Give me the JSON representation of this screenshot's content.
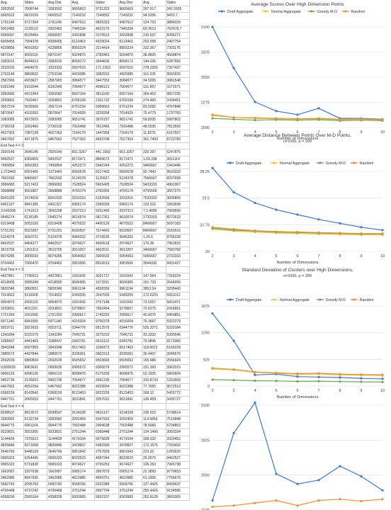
{
  "spreadsheet": {
    "header": [
      "Avg.",
      "Stdev",
      "Avg Dist",
      "Avg.",
      "Stdev",
      "Avg Dist",
      "Avg.",
      "Stdev"
    ],
    "section_labels": [
      "End Test # = 2",
      "End Test # = 3",
      "End Test # = 4"
    ],
    "block1": [
      [
        "3283592",
        "7008744",
        "3283592",
        "9665663",
        "9731223",
        "9665663",
        "267.917",
        "341.5935"
      ],
      [
        "6665522",
        "6819159",
        "6665522",
        "7149232",
        "7240832",
        "7149232",
        "94.5256",
        "9433.7"
      ],
      [
        "1791145",
        "9717394",
        "1791145",
        "9497912",
        "9655323",
        "9497912",
        "124.753",
        "3884329"
      ],
      [
        "9302483",
        "1125123",
        "9302483",
        "7445334",
        "4923170",
        "7445334",
        "69.3513",
        "762678.7"
      ],
      [
        "6566667",
        "6528454",
        "6566667",
        "3432838",
        "2376513",
        "3432838",
        "216.637",
        "6096271"
      ],
      [
        "8308455",
        "7994378",
        "8308455",
        "6113463",
        "4529024",
        "6113463",
        "202.058",
        "2407754"
      ],
      [
        "4228856",
        "4691563",
        "4228856",
        "8955224",
        "2214414",
        "8955224",
        "222.367",
        "7301176"
      ],
      [
        "5870147",
        "9559116",
        "5870147",
        "5024876",
        "2782463",
        "5024876",
        "38.4825",
        "4564874"
      ],
      [
        "3383015",
        "8044613",
        "3383015",
        "8058172",
        "3944605",
        "8058172",
        "144.036",
        "5287683"
      ],
      [
        "3333333",
        "4464675",
        "3333333",
        "0597015",
        "171.2333",
        "0597015",
        "278.2255",
        "7357437"
      ],
      [
        "2763149",
        "9869632",
        "2763149",
        "4429385",
        "3382916",
        "4429385",
        "116.326",
        "9655929"
      ],
      [
        "2587065",
        "4933627",
        "2587065",
        "3084577",
        "3447553",
        "3084577",
        "34.5265",
        "3081548"
      ],
      [
        "6191549",
        "5162044",
        "6191549",
        "7064677",
        "4998121",
        "7064677",
        "131.857",
        "1571571"
      ],
      [
        "3283582",
        "4101964",
        "3283582",
        "6567164",
        "3611168",
        "6567164",
        "369.463",
        "9827235"
      ],
      [
        "2039801",
        "7932467",
        "2039801",
        "6766169",
        "2161732",
        "6766169",
        "274.465",
        "1099451"
      ],
      [
        "3557214",
        "5035569",
        "3557214",
        "6751234",
        "5089663",
        "6751234",
        "83.5282",
        "4767848"
      ],
      [
        "5870647",
        "4103393",
        "5870647",
        "7014925",
        "3229268",
        "7014925",
        "75.4775",
        "1737783"
      ],
      [
        "3383085",
        "9973933",
        "3383085",
        "9651741",
        "3976157",
        "9651741",
        "59.8335",
        "5997803"
      ],
      [
        "2736318",
        "1092469",
        "2736318",
        "7916468",
        "7813466",
        "7916468",
        "48.5535",
        "7813593"
      ],
      [
        "4527363",
        "7387128",
        "4527363",
        "7164179",
        "1447958",
        "7164179",
        "11.8275",
        "6167557"
      ],
      [
        "9467662",
        "4371875",
        "9467662",
        "7527363",
        "4933708",
        "7527363",
        "361.7409",
        "8722783"
      ]
    ],
    "block2": [
      [
        "2920149",
        "2645145",
        "2920149",
        "661.3267",
        "441.1692",
        "661.3267",
        "220.397",
        "5247875"
      ],
      [
        "9492537",
        "6369905",
        "9492537",
        "8172471",
        "8466672",
        "8172471",
        "1.59.338",
        "3911114"
      ],
      [
        "7495854",
        "3056353",
        "7495854",
        "4252273",
        "5942244",
        "4252273",
        "9466667",
        "1943446"
      ],
      [
        "1.373443",
        "5001465",
        "1373443",
        "6565578",
        "5217403",
        "6565578",
        "92.7443",
        "9633333"
      ],
      [
        "7661592",
        "9466667",
        "7661592",
        "5124378",
        "1125637",
        "5124378",
        "7566667",
        "8237658"
      ],
      [
        "3996683",
        "5217422",
        "3996683",
        "7628524",
        "5665405",
        "7628524",
        "9433333",
        "4963367"
      ],
      [
        "3968888",
        "9501867",
        "3968888",
        "4765174",
        "2765356",
        "4765174",
        "4755556",
        "3557275"
      ],
      [
        "8341025",
        "1574618",
        "8341025",
        "3233316",
        "5162566",
        "3233316",
        "7533333",
        "3005893"
      ],
      [
        "6401327",
        "9841385",
        "6401327",
        "6965174",
        "2399336",
        "6965174",
        "102.616",
        "1803698"
      ],
      [
        "3.542208",
        "1741513",
        "3542208",
        "2537313",
        "5251465",
        "2537313",
        "7.2.4000",
        "7069660"
      ],
      [
        "0945274",
        "6135185",
        "0945274",
        "9616574",
        "5817261",
        "9616574",
        "1733333",
        "8273633"
      ],
      [
        "6319408",
        "5053193",
        "6319408",
        "4075522",
        "4400126",
        "4075522",
        "8466667",
        "5697183"
      ],
      [
        "5731291",
        "5523287",
        "5731291",
        "6630597",
        "7574403",
        "6630597",
        "8466667",
        "3183516"
      ],
      [
        "5124378",
        "3660721",
        "5124378",
        "9946332",
        "3716535",
        "9946332",
        "1.25.6",
        "9756338"
      ],
      [
        "8492537",
        "9464377",
        "8492537",
        "2074627",
        "4930618",
        "2074627",
        "176.36",
        "7962815"
      ],
      [
        "3515755",
        "1201313",
        "3515755",
        "3013267",
        "4502011",
        "3013267",
        "3466667",
        "7583782"
      ],
      [
        "8074285",
        "3006033",
        "8074285",
        "5054063",
        "3305532",
        "5054063",
        "5066667",
        "2733333"
      ],
      [
        "9704462",
        "7066470",
        "9704462",
        "3953566",
        "8916513",
        "3953566",
        "3544330",
        "9431427"
      ]
    ],
    "block3": [
      [
        "4427861",
        "7796613",
        "4427861",
        "1691542",
        "3021717",
        "1691542",
        "147.564",
        "7318224"
      ],
      [
        "4218905",
        "3996349",
        "4218905",
        "9606965",
        "1573311",
        "9606965",
        "151.733",
        "2644269"
      ],
      [
        "5820346",
        "3860551",
        "5820346",
        "9961194",
        "4558356",
        "9961194",
        "3853.54",
        "3295443"
      ],
      [
        "7014922",
        "9115928",
        "7014922",
        "5349255",
        "3247503",
        "5349255",
        "172.5225",
        "5911012"
      ],
      [
        "9054973",
        "2605115",
        "9054973",
        "1691542",
        "3757148",
        "1691542",
        "73.5357",
        "5661471"
      ],
      [
        "3233831",
        "4011101",
        "3233831",
        "5278607",
        "7962454",
        "5278607",
        "72.6275",
        "2418951"
      ],
      [
        "1721393",
        "1091565",
        "1721393",
        "2995617",
        "1745293",
        "2995617",
        "40.4375",
        "9469851"
      ],
      [
        "5971140",
        "9941655",
        "5971140",
        "4159204",
        "9756378",
        "4159204",
        "76.3667",
        "5322279"
      ],
      [
        "9253711",
        "3922633",
        "9253711",
        "0344776",
        "9512575",
        "0344776",
        "525.3271",
        "5229184"
      ],
      [
        "1343284",
        "5220179",
        "1343284",
        "7646731",
        "3276310",
        "7646731",
        "33.3332",
        "5305546"
      ],
      [
        "1098437",
        "4441463",
        "1098437",
        "0343781",
        "6616116",
        "0343781",
        "79.9845",
        "9173383"
      ],
      [
        "3943348",
        "6697959",
        "3943348",
        "6517463",
        "1184373",
        "6517463",
        "118.6622",
        "5166229"
      ],
      [
        "2985572",
        "4427844",
        "2985572",
        "2035061",
        "0902313",
        "2035061",
        "30.4437",
        "3945575"
      ],
      [
        "2592039",
        "9880834",
        "2592039",
        "6505652",
        "9503669",
        "6505652",
        "155.686",
        "2556924"
      ],
      [
        "0.893035",
        "9963631",
        "0993035",
        "2995572",
        "9300076",
        "2995572",
        "151.393",
        "3962015"
      ],
      [
        "9966133",
        "4396126",
        "9966133",
        "9008475",
        "5175335",
        "9008475",
        "52.1925",
        "5800604"
      ],
      [
        "9452736",
        "3135023",
        "9452736",
        "7064677",
        "2691235",
        "7064677",
        "310.8733",
        "1331659"
      ],
      [
        "6467662",
        "4552254",
        "6467662",
        "9022388",
        "4029554",
        "9022388",
        "77.7655",
        "9572513"
      ],
      [
        "6368159",
        "8143543",
        "6368159",
        "8123453",
        "9022239",
        "8123453",
        "168.12",
        "5426772"
      ],
      [
        "0447761",
        "2065933",
        "0447761",
        "3631841",
        "3357631",
        "3631841",
        "136.459",
        "3436727"
      ]
    ],
    "block4": [
      [
        "8298507",
        "9813572",
        "8298507",
        "9134328",
        "9631137",
        "9134328",
        "236.915",
        "5738614"
      ],
      [
        "3283582",
        "6132734",
        "3283582",
        "3202459",
        "5047933",
        "3202459",
        "114.5856",
        "7516848"
      ],
      [
        "9044776",
        "4361164",
        "9044776",
        "7502488",
        "2994638",
        "7502488",
        "78.5066",
        "6794853"
      ],
      [
        "9233831",
        "3553305",
        "9233831",
        "2751244",
        "6366448",
        "2751244",
        "124.1496",
        "3993334"
      ],
      [
        "1144428",
        "7379312",
        "1144428",
        "4179104",
        "6675828",
        "4179104",
        "168.332",
        "3329452"
      ],
      [
        "9835846",
        "5071658",
        "9835846",
        "3478607",
        "5482990",
        "3478607",
        "172.1675",
        "7250433"
      ],
      [
        "2646766",
        "9448129",
        "2646766",
        "9951642",
        "2757839",
        "9951642",
        "223.32",
        "1265525"
      ],
      [
        "0995323",
        "6254445",
        "0995323",
        "8033523",
        "4587244",
        "8033523",
        "26.2676",
        "9462527"
      ],
      [
        "9995323",
        "5731828",
        "9995323",
        "9074627",
        "9765253",
        "9074627",
        "106.253",
        "7945738"
      ],
      [
        "1662687",
        "3207638",
        "1662687",
        "0905174",
        "3957879",
        "0905174",
        "22.3693",
        "9779653"
      ],
      [
        "3462985",
        "8647935",
        "3462985",
        "4623985",
        "4659751",
        "4623985",
        "61.3306",
        "7756679"
      ],
      [
        "5582742",
        "2095763",
        "5582742",
        "5568766",
        "5322389",
        "5568766",
        "127.4425",
        "8439637"
      ],
      [
        "4706468",
        "4737242",
        "4706468",
        "3751244",
        "2697794",
        "3751244",
        "255.4426",
        "9134585"
      ],
      [
        "4358209",
        "2565164",
        "4358209",
        "9303583",
        "5652157",
        "9303583",
        "252.8128",
        "3893305"
      ]
    ]
  },
  "charts": [
    {
      "title": "Average Scores Over High Dimension Points",
      "subtitle": "",
      "legend": [
        "Draft Aggregate",
        "Normal Aggregate",
        "Greedy M-D",
        "Random"
      ],
      "y_ticks": [
        "3100",
        "2825",
        "2550",
        "2275",
        "2000"
      ],
      "x_ticks": [
        "2",
        "3",
        "4",
        "5",
        "6",
        "7",
        "8",
        "9",
        "10"
      ],
      "xlabel": "Number of Dimensions"
    },
    {
      "title": "Average Distance Between Points Over M-D Points,",
      "subtitle": "n=1000, p = 200",
      "legend": [
        "Draft Aggregate",
        "Normal Aggregate",
        "Greedy M-D",
        "Random"
      ],
      "y_ticks": [
        "28.25",
        "25.5",
        "22.75",
        "20"
      ],
      "x_ticks": [
        "2",
        "3",
        "4",
        "5",
        "6",
        "7",
        "8",
        "9",
        "10"
      ],
      "xlabel": "Number of Dimensions"
    },
    {
      "title": "Standard Deviation of Clusters over High Dimensions,",
      "subtitle": "n=1000, p = 200",
      "legend": [
        "Draft Aggregate",
        "Normal Aggregate",
        "Greedy M-D",
        "Random"
      ],
      "y_ticks": [
        "1875",
        "1250",
        "625",
        "0"
      ],
      "x_ticks": [
        "2",
        "3",
        "4",
        "5",
        "6",
        "7",
        "8",
        "9",
        "10"
      ],
      "xlabel": "Number of Dimensions"
    },
    {
      "title": "",
      "subtitle": "",
      "legend": [],
      "y_ticks": [
        "3100",
        "2825",
        "2550",
        "2275"
      ],
      "x_ticks": [],
      "xlabel": ""
    }
  ],
  "series_colors": {
    "Draft Aggregate": "#3c78d8",
    "Normal Aggregate": "#f1c232",
    "Greedy M-D": "#6aa84f",
    "Random": "#e69138"
  },
  "chart_data": [
    {
      "type": "line",
      "title": "Average Scores Over High Dimension Points",
      "xlabel": "Number of Dimensions",
      "ylabel": "",
      "x": [
        2,
        3,
        4,
        5,
        6,
        7,
        8,
        9,
        10
      ],
      "ylim": [
        2000,
        3100
      ],
      "series": [
        {
          "name": "Draft Aggregate",
          "values": [
            3100,
            2650,
            2280,
            2180,
            2140,
            2210,
            2100,
            2100,
            2090
          ]
        },
        {
          "name": "Normal Aggregate",
          "values": [
            2130,
            2110,
            2100,
            2095,
            2090,
            2095,
            2085,
            2090,
            2080
          ]
        },
        {
          "name": "Greedy M-D",
          "values": [
            2100,
            2090,
            2080,
            2085,
            2080,
            2085,
            2075,
            2080,
            2075
          ]
        },
        {
          "name": "Random",
          "values": [
            2140,
            2110,
            2105,
            2100,
            2095,
            2100,
            2090,
            2095,
            2085
          ]
        }
      ]
    },
    {
      "type": "line",
      "title": "Average Distance Between Points Over M-D Points,",
      "xlabel": "Number of Dimensions",
      "ylabel": "",
      "x": [
        2,
        3,
        4,
        5,
        6,
        7,
        8,
        9,
        10
      ],
      "ylim": [
        20,
        28.25
      ],
      "series": [
        {
          "name": "Draft Aggregate",
          "values": [
            28.6,
            26.1,
            25.0,
            24.3,
            23.8,
            23.3,
            22.9,
            22.5,
            22.2
          ]
        },
        {
          "name": "Normal Aggregate",
          "values": [
            22.3,
            22.1,
            22.0,
            21.9,
            21.85,
            21.8,
            21.75,
            21.7,
            21.7
          ]
        },
        {
          "name": "Greedy M-D",
          "values": [
            22.4,
            22.2,
            22.1,
            22.0,
            21.95,
            21.9,
            21.85,
            21.8,
            21.8
          ]
        },
        {
          "name": "Random",
          "values": [
            22.5,
            22.3,
            22.15,
            22.05,
            22.0,
            21.95,
            21.9,
            21.85,
            21.85
          ]
        }
      ]
    },
    {
      "type": "line",
      "title": "Standard Deviation of Clusters over High Dimensions,",
      "xlabel": "Number of Dimensions",
      "ylabel": "",
      "x": [
        2,
        3,
        4,
        5,
        6,
        7,
        8,
        9,
        10
      ],
      "ylim": [
        0,
        1875
      ],
      "series": [
        {
          "name": "Draft Aggregate",
          "values": [
            1700,
            1060,
            260,
            280,
            220,
            210,
            200,
            180,
            170
          ]
        },
        {
          "name": "Normal Aggregate",
          "values": [
            400,
            380,
            320,
            300,
            270,
            280,
            260,
            250,
            245
          ]
        },
        {
          "name": "Greedy M-D",
          "values": [
            150,
            140,
            125,
            120,
            110,
            115,
            105,
            100,
            95
          ]
        },
        {
          "name": "Random",
          "values": [
            420,
            390,
            330,
            310,
            290,
            300,
            280,
            270,
            265
          ]
        }
      ]
    },
    {
      "type": "line",
      "title": "",
      "xlabel": "",
      "ylabel": "",
      "x": [
        2,
        3,
        4,
        5,
        6,
        7,
        8,
        9,
        10
      ],
      "ylim": [
        2275,
        3100
      ],
      "series": [
        {
          "name": "Draft Aggregate",
          "values": [
            2350,
            2880,
            3120,
            2560,
            2480,
            2510,
            2620,
            2540,
            2430
          ]
        },
        {
          "name": "Random",
          "values": [
            2300,
            2310,
            2330,
            2350,
            2310,
            2350,
            2360,
            2345,
            2360
          ]
        }
      ]
    }
  ]
}
